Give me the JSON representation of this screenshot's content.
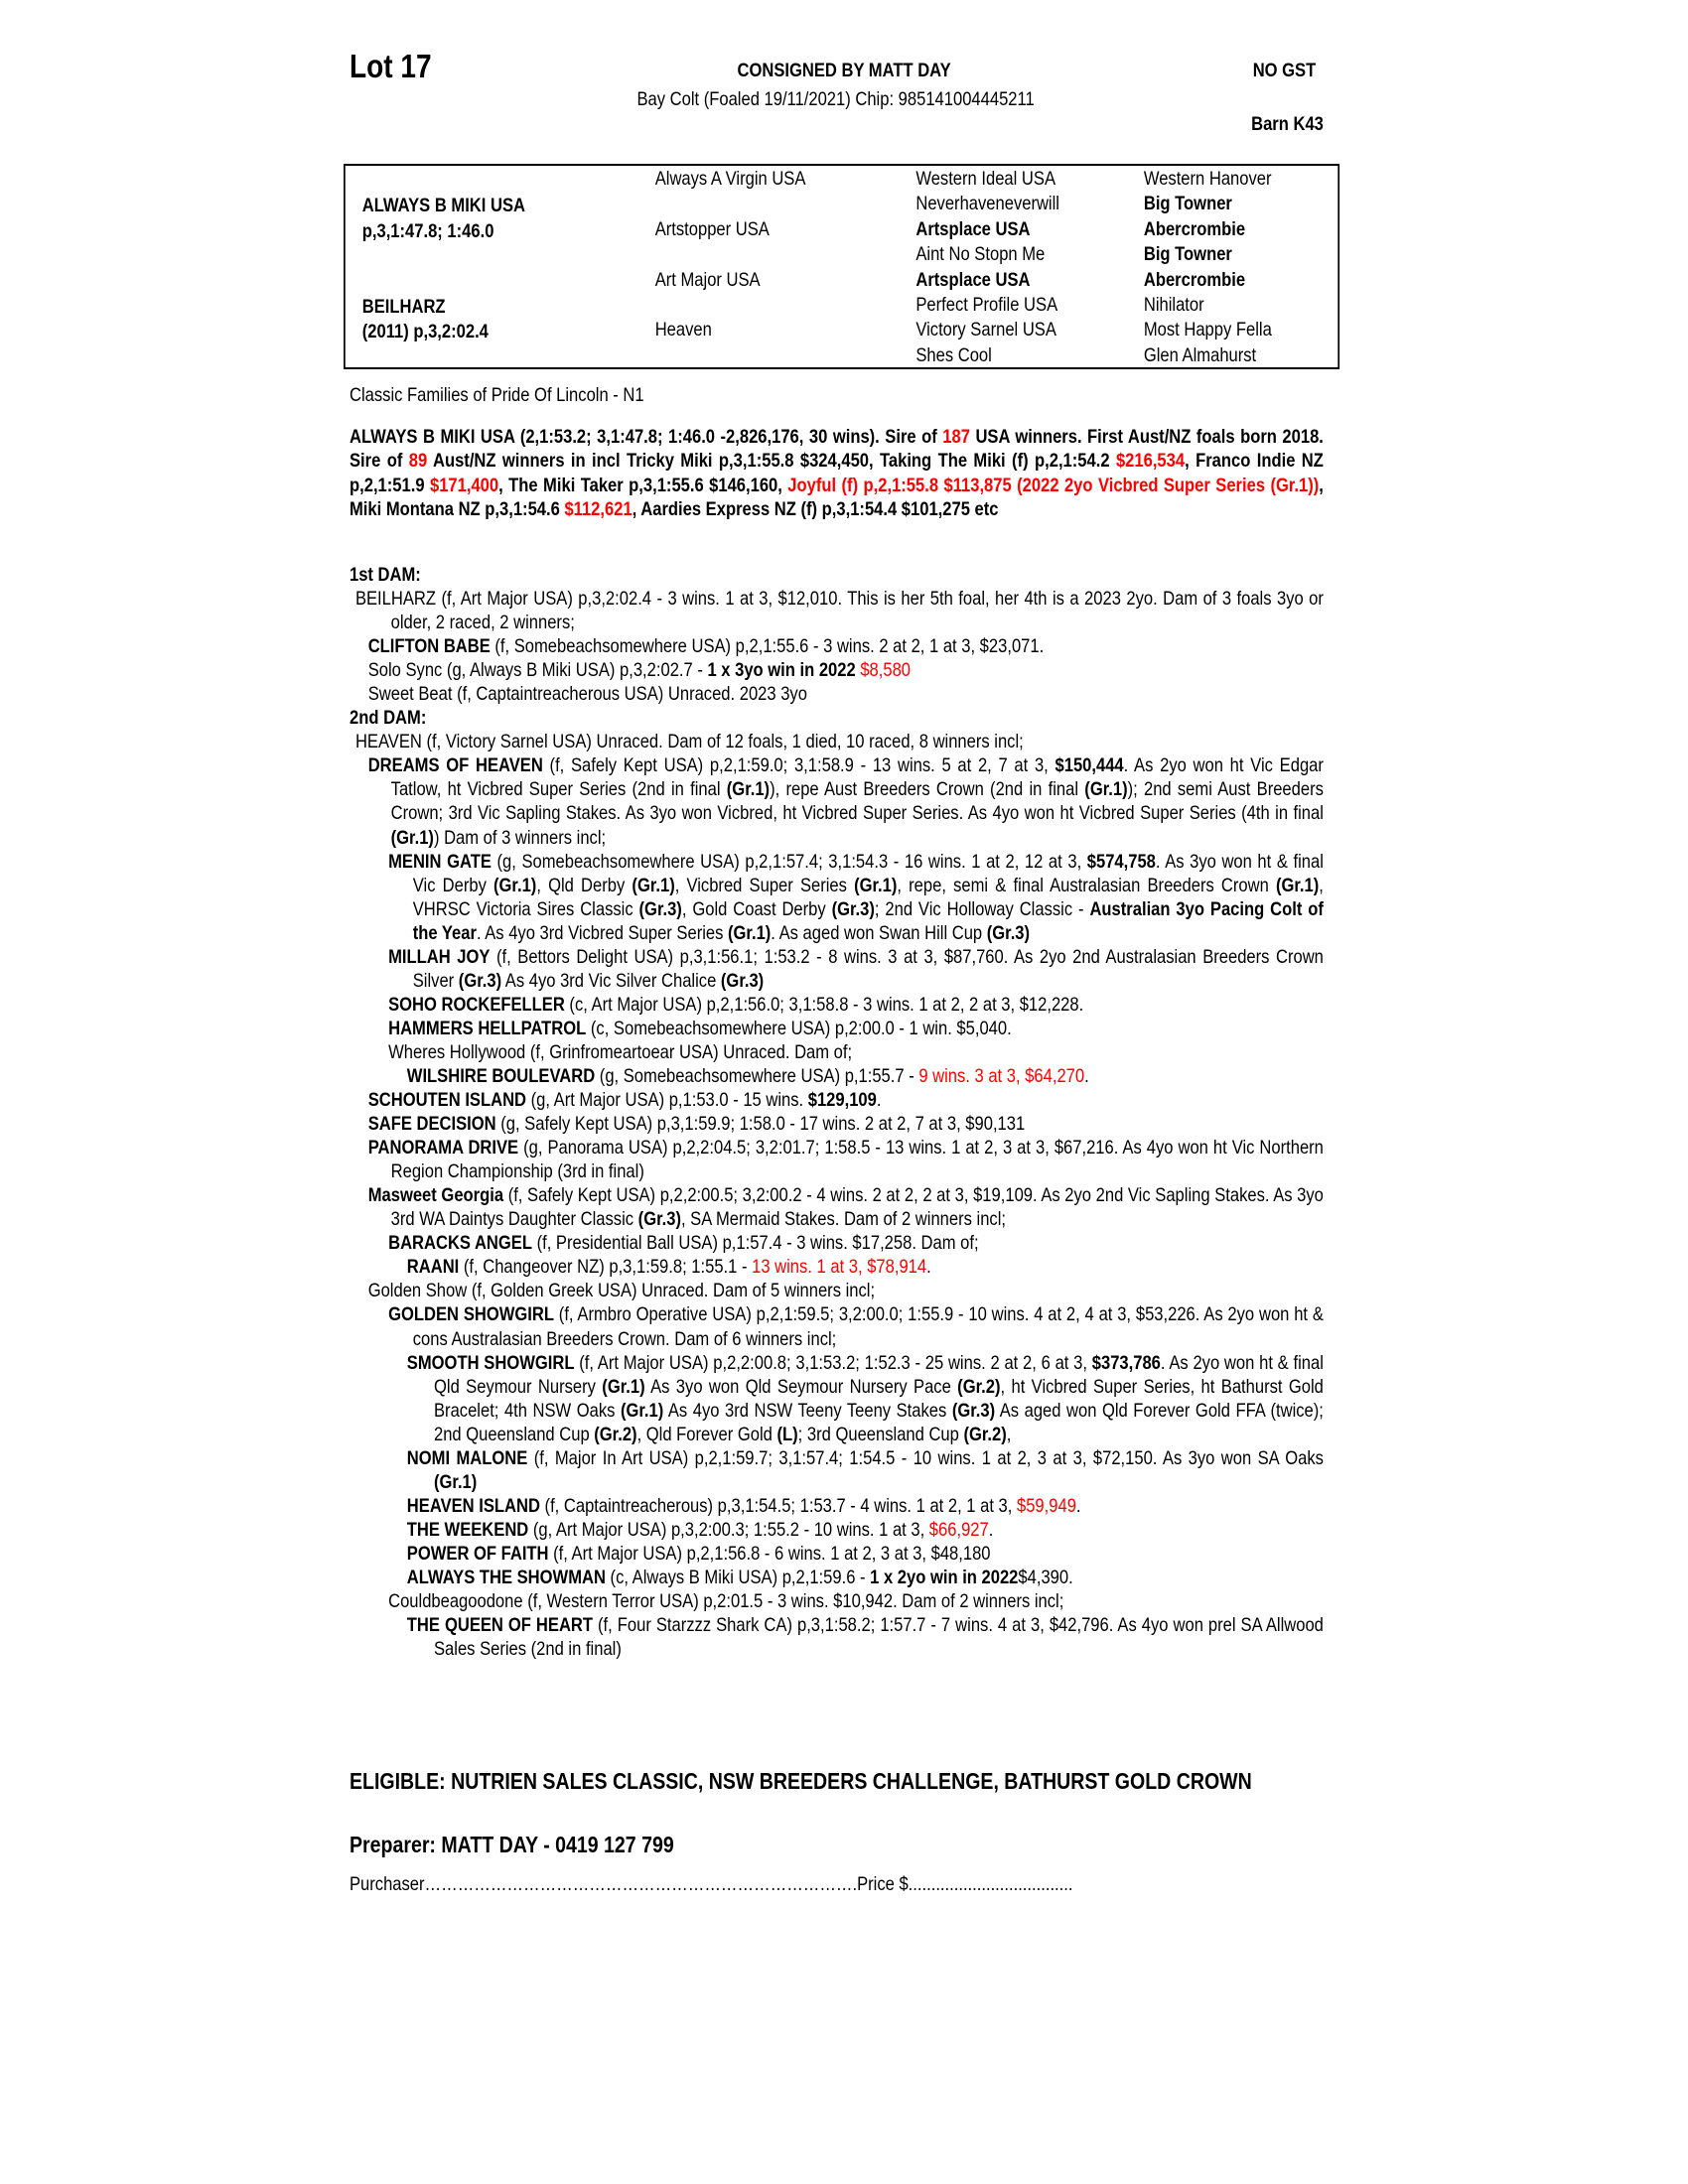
{
  "header": {
    "lot": "Lot 17",
    "consigned": "CONSIGNED BY MATT DAY",
    "description": "Bay Colt (Foaled 19/11/2021) Chip: 985141004445211",
    "gst": "NO GST",
    "barn": "Barn K43"
  },
  "pedigree": {
    "sire": {
      "name": "ALWAYS B MIKI USA",
      "record": "p,3,1:47.8; 1:46.0"
    },
    "dam": {
      "name": "BEILHARZ",
      "record": "(2011) p,3,2:02.4"
    },
    "grandparents": [
      "Always A Virgin USA",
      "Artstopper USA",
      "Art Major USA",
      "Heaven"
    ],
    "great_grandparents": [
      {
        "name": "Western Ideal USA",
        "bold": false
      },
      {
        "name": "Neverhaveneverwill",
        "bold": false
      },
      {
        "name": "Artsplace USA",
        "bold": true
      },
      {
        "name": "Aint No Stopn Me",
        "bold": false
      },
      {
        "name": "Artsplace USA",
        "bold": true
      },
      {
        "name": "Perfect Profile USA",
        "bold": false
      },
      {
        "name": "Victory Sarnel USA",
        "bold": false
      },
      {
        "name": "Shes Cool",
        "bold": false
      }
    ],
    "great_great_grandparents": [
      {
        "name": "Western Hanover",
        "bold": false
      },
      {
        "name": "Big Towner",
        "bold": true
      },
      {
        "name": "Abercrombie",
        "bold": true
      },
      {
        "name": "Big Towner",
        "bold": true
      },
      {
        "name": "Abercrombie",
        "bold": true
      },
      {
        "name": "Nihilator",
        "bold": false
      },
      {
        "name": "Most Happy Fella",
        "bold": false
      },
      {
        "name": "Glen Almahurst",
        "bold": false
      }
    ]
  },
  "family": "Classic Families of Pride Of Lincoln - N1",
  "highlight_color": "#ff0000",
  "sire_summary": [
    {
      "t": "ALWAYS B MIKI USA (2,1:53.2; 3,1:47.8; 1:46.0 -2,826,176, 30 wins). Sire of ",
      "s": ""
    },
    {
      "t": "187",
      "s": "r"
    },
    {
      "t": " USA winners. First Aust/NZ foals born 2018. Sire of ",
      "s": ""
    },
    {
      "t": "89",
      "s": "r"
    },
    {
      "t": " Aust/NZ winners in incl Tricky Miki p,3,1:55.8 $324,450, Taking The Miki (f) p,2,1:54.2 ",
      "s": ""
    },
    {
      "t": "$216,534",
      "s": "r"
    },
    {
      "t": ", Franco Indie NZ p,2,1:51.9 ",
      "s": ""
    },
    {
      "t": "$171,400",
      "s": "r"
    },
    {
      "t": ", The Miki Taker p,3,1:55.6 $146,160, ",
      "s": ""
    },
    {
      "t": "Joyful (f) p,2,1:55.8 $113,875 (2022 2yo Vicbred Super Series (Gr.1))",
      "s": "r"
    },
    {
      "t": ", Miki Montana NZ p,3,1:54.6 ",
      "s": ""
    },
    {
      "t": "$112,621",
      "s": "r"
    },
    {
      "t": ", Aardies Express NZ (f) p,3,1:54.4 $101,275 etc",
      "s": ""
    }
  ],
  "sections": [
    {
      "heading": "1st DAM:",
      "entries": [
        {
          "depth": 0,
          "segs": [
            {
              "t": "BEILHARZ (f, Art Major USA) p,3,2:02.4 - 3 wins. 1 at 3, $12,010. This is her 5th foal, her 4th is a 2023 2yo. Dam of 3 foals 3yo or older, 2 raced, 2 winners;",
              "s": ""
            }
          ]
        },
        {
          "depth": 1,
          "segs": [
            {
              "t": "CLIFTON BABE",
              "s": "b"
            },
            {
              "t": " (f, Somebeachsomewhere USA) p,2,1:55.6 - 3 wins. 2 at 2, 1 at 3, $23,071.",
              "s": ""
            }
          ]
        },
        {
          "depth": 1,
          "segs": [
            {
              "t": "Solo Sync (g, Always B Miki USA) p,3,2:02.7 - ",
              "s": ""
            },
            {
              "t": "1 x 3yo win in 2022",
              "s": "b"
            },
            {
              "t": " ",
              "s": ""
            },
            {
              "t": "$8,580",
              "s": "r"
            }
          ]
        },
        {
          "depth": 1,
          "segs": [
            {
              "t": "Sweet Beat (f, Captaintreacherous USA) Unraced. 2023 3yo",
              "s": ""
            }
          ]
        }
      ]
    },
    {
      "heading": "2nd DAM:",
      "entries": [
        {
          "depth": 0,
          "segs": [
            {
              "t": "HEAVEN (f, Victory Sarnel USA) Unraced. Dam of 12 foals, 1 died, 10 raced, 8 winners incl;",
              "s": ""
            }
          ]
        },
        {
          "depth": 1,
          "segs": [
            {
              "t": "DREAMS OF HEAVEN",
              "s": "b"
            },
            {
              "t": " (f, Safely Kept USA) p,2,1:59.0; 3,1:58.9 - 13 wins. 5 at 2, 7 at 3, ",
              "s": ""
            },
            {
              "t": "$150,444",
              "s": "b"
            },
            {
              "t": ". As 2yo won ht Vic Edgar Tatlow, ht Vicbred Super Series (2nd in final ",
              "s": ""
            },
            {
              "t": "(Gr.1)",
              "s": "b"
            },
            {
              "t": "), repe Aust Breeders Crown (2nd in final ",
              "s": ""
            },
            {
              "t": "(Gr.1)",
              "s": "b"
            },
            {
              "t": "); 2nd semi Aust Breeders Crown; 3rd Vic Sapling Stakes. As 3yo won Vicbred, ht Vicbred Super Series. As 4yo won ht Vicbred Super Series (4th in final ",
              "s": ""
            },
            {
              "t": "(Gr.1)",
              "s": "b"
            },
            {
              "t": ") Dam of 3 winners incl;",
              "s": ""
            }
          ]
        },
        {
          "depth": 2,
          "segs": [
            {
              "t": "MENIN GATE",
              "s": "b"
            },
            {
              "t": " (g, Somebeachsomewhere USA) p,2,1:57.4; 3,1:54.3 - 16 wins. 1 at 2, 12 at 3, ",
              "s": ""
            },
            {
              "t": "$574,758",
              "s": "b"
            },
            {
              "t": ". As 3yo won ht & final Vic Derby ",
              "s": ""
            },
            {
              "t": "(Gr.1)",
              "s": "b"
            },
            {
              "t": ", Qld Derby ",
              "s": ""
            },
            {
              "t": "(Gr.1)",
              "s": "b"
            },
            {
              "t": ", Vicbred Super Series ",
              "s": ""
            },
            {
              "t": "(Gr.1)",
              "s": "b"
            },
            {
              "t": ", repe, semi & final Australasian Breeders Crown ",
              "s": ""
            },
            {
              "t": "(Gr.1)",
              "s": "b"
            },
            {
              "t": ", VHRSC Victoria Sires Classic ",
              "s": ""
            },
            {
              "t": "(Gr.3)",
              "s": "b"
            },
            {
              "t": ", Gold Coast Derby ",
              "s": ""
            },
            {
              "t": "(Gr.3)",
              "s": "b"
            },
            {
              "t": "; 2nd Vic Holloway Classic - ",
              "s": ""
            },
            {
              "t": "Australian 3yo Pacing Colt of the Year",
              "s": "b"
            },
            {
              "t": ". As 4yo 3rd Vicbred Super Series ",
              "s": ""
            },
            {
              "t": "(Gr.1)",
              "s": "b"
            },
            {
              "t": ". As aged won Swan Hill Cup ",
              "s": ""
            },
            {
              "t": "(Gr.3)",
              "s": "b"
            }
          ]
        },
        {
          "depth": 2,
          "segs": [
            {
              "t": "MILLAH JOY",
              "s": "b"
            },
            {
              "t": " (f, Bettors Delight USA) p,3,1:56.1; 1:53.2 - 8 wins. 3 at 3, $87,760. As 2yo 2nd Australasian Breeders Crown Silver ",
              "s": ""
            },
            {
              "t": "(Gr.3)",
              "s": "b"
            },
            {
              "t": " As 4yo 3rd Vic Silver Chalice ",
              "s": ""
            },
            {
              "t": "(Gr.3)",
              "s": "b"
            }
          ]
        },
        {
          "depth": 2,
          "segs": [
            {
              "t": "SOHO ROCKEFELLER",
              "s": "b"
            },
            {
              "t": " (c, Art Major USA) p,2,1:56.0; 3,1:58.8 - 3 wins. 1 at 2, 2 at 3, $12,228.",
              "s": ""
            }
          ]
        },
        {
          "depth": 2,
          "segs": [
            {
              "t": "HAMMERS HELLPATROL",
              "s": "b"
            },
            {
              "t": " (c, Somebeachsomewhere USA) p,2:00.0 - 1 win. $5,040.",
              "s": ""
            }
          ]
        },
        {
          "depth": 2,
          "segs": [
            {
              "t": "Wheres Hollywood (f, Grinfromeartoear USA) Unraced. Dam of;",
              "s": ""
            }
          ]
        },
        {
          "depth": 3,
          "segs": [
            {
              "t": "WILSHIRE BOULEVARD",
              "s": "b"
            },
            {
              "t": " (g, Somebeachsomewhere USA) p,1:55.7 - ",
              "s": ""
            },
            {
              "t": "9 wins. 3 at 3, $64,270",
              "s": "r"
            },
            {
              "t": ".",
              "s": ""
            }
          ]
        },
        {
          "depth": 1,
          "segs": [
            {
              "t": "SCHOUTEN ISLAND",
              "s": "b"
            },
            {
              "t": " (g, Art Major USA) p,1:53.0 - 15 wins. ",
              "s": ""
            },
            {
              "t": "$129,109",
              "s": "b"
            },
            {
              "t": ".",
              "s": ""
            }
          ]
        },
        {
          "depth": 1,
          "segs": [
            {
              "t": "SAFE DECISION",
              "s": "b"
            },
            {
              "t": " (g, Safely Kept USA) p,3,1:59.9; 1:58.0 - 17 wins. 2 at 2, 7 at 3, $90,131",
              "s": ""
            }
          ]
        },
        {
          "depth": 1,
          "segs": [
            {
              "t": "PANORAMA DRIVE",
              "s": "b"
            },
            {
              "t": " (g, Panorama USA) p,2,2:04.5; 3,2:01.7; 1:58.5 - 13 wins. 1 at 2, 3 at 3, $67,216. As 4yo won ht Vic Northern Region Championship (3rd in final)",
              "s": ""
            }
          ]
        },
        {
          "depth": 1,
          "segs": [
            {
              "t": "Masweet Georgia",
              "s": "b"
            },
            {
              "t": " (f, Safely Kept USA) p,2,2:00.5; 3,2:00.2 - 4 wins. 2 at 2, 2 at 3, $19,109. As 2yo 2nd Vic Sapling Stakes. As 3yo 3rd WA Daintys Daughter Classic ",
              "s": ""
            },
            {
              "t": "(Gr.3)",
              "s": "b"
            },
            {
              "t": ", SA Mermaid Stakes. Dam of 2 winners incl;",
              "s": ""
            }
          ]
        },
        {
          "depth": 2,
          "segs": [
            {
              "t": "BARACKS ANGEL",
              "s": "b"
            },
            {
              "t": " (f, Presidential Ball USA) p,1:57.4 - 3 wins. $17,258. Dam of;",
              "s": ""
            }
          ]
        },
        {
          "depth": 3,
          "segs": [
            {
              "t": "RAANI",
              "s": "b"
            },
            {
              "t": " (f, Changeover NZ) p,3,1:59.8; 1:55.1 - ",
              "s": ""
            },
            {
              "t": "13 wins. 1 at 3, $78,914",
              "s": "r"
            },
            {
              "t": ".",
              "s": ""
            }
          ]
        },
        {
          "depth": 1,
          "segs": [
            {
              "t": "Golden Show (f, Golden Greek USA) Unraced. Dam of 5 winners incl;",
              "s": ""
            }
          ]
        },
        {
          "depth": 2,
          "segs": [
            {
              "t": "GOLDEN SHOWGIRL",
              "s": "b"
            },
            {
              "t": " (f, Armbro Operative USA) p,2,1:59.5; 3,2:00.0; 1:55.9 - 10 wins. 4 at 2, 4 at 3, $53,226. As 2yo won ht & cons Australasian Breeders Crown. Dam of 6 winners incl;",
              "s": ""
            }
          ]
        },
        {
          "depth": 3,
          "segs": [
            {
              "t": "SMOOTH SHOWGIRL",
              "s": "b"
            },
            {
              "t": " (f, Art Major USA) p,2,2:00.8; 3,1:53.2; 1:52.3 - 25 wins. 2 at 2, 6 at 3, ",
              "s": ""
            },
            {
              "t": "$373,786",
              "s": "b"
            },
            {
              "t": ". As 2yo won ht & final Qld Seymour Nursery ",
              "s": ""
            },
            {
              "t": "(Gr.1)",
              "s": "b"
            },
            {
              "t": " As 3yo won Qld Seymour Nursery Pace ",
              "s": ""
            },
            {
              "t": "(Gr.2)",
              "s": "b"
            },
            {
              "t": ", ht Vicbred Super Series, ht Bathurst Gold Bracelet; 4th NSW Oaks ",
              "s": ""
            },
            {
              "t": "(Gr.1)",
              "s": "b"
            },
            {
              "t": " As 4yo 3rd NSW Teeny Teeny Stakes ",
              "s": ""
            },
            {
              "t": "(Gr.3)",
              "s": "b"
            },
            {
              "t": " As aged won Qld Forever Gold FFA (twice); 2nd Queensland Cup ",
              "s": ""
            },
            {
              "t": "(Gr.2)",
              "s": "b"
            },
            {
              "t": ", Qld Forever Gold ",
              "s": ""
            },
            {
              "t": "(L)",
              "s": "b"
            },
            {
              "t": "; 3rd Queensland Cup ",
              "s": ""
            },
            {
              "t": "(Gr.2)",
              "s": "b"
            },
            {
              "t": ",",
              "s": ""
            }
          ]
        },
        {
          "depth": 3,
          "segs": [
            {
              "t": "NOMI MALONE",
              "s": "b"
            },
            {
              "t": " (f, Major In Art USA) p,2,1:59.7; 3,1:57.4; 1:54.5 - 10 wins. 1 at 2, 3 at 3, $72,150. As 3yo won SA Oaks ",
              "s": ""
            },
            {
              "t": "(Gr.1)",
              "s": "b"
            }
          ]
        },
        {
          "depth": 3,
          "segs": [
            {
              "t": "HEAVEN ISLAND",
              "s": "b"
            },
            {
              "t": " (f, Captaintreacherous) p,3,1:54.5; 1:53.7 - 4 wins. 1 at 2, 1 at 3, ",
              "s": ""
            },
            {
              "t": "$59,949",
              "s": "r"
            },
            {
              "t": ".",
              "s": ""
            }
          ]
        },
        {
          "depth": 3,
          "segs": [
            {
              "t": "THE WEEKEND",
              "s": "b"
            },
            {
              "t": " (g, Art Major USA) p,3,2:00.3; 1:55.2 - 10 wins. 1 at 3, ",
              "s": ""
            },
            {
              "t": "$66,927",
              "s": "r"
            },
            {
              "t": ".",
              "s": ""
            }
          ]
        },
        {
          "depth": 3,
          "segs": [
            {
              "t": "POWER OF FAITH",
              "s": "b"
            },
            {
              "t": " (f, Art Major USA) p,2,1:56.8 - 6 wins. 1 at 2, 3 at 3, $48,180",
              "s": ""
            }
          ]
        },
        {
          "depth": 3,
          "segs": [
            {
              "t": "ALWAYS THE SHOWMAN",
              "s": "b"
            },
            {
              "t": " (c, Always B Miki USA) p,2,1:59.6 - ",
              "s": ""
            },
            {
              "t": "1 x 2yo win in 2022",
              "s": "b"
            },
            {
              "t": "$4,390.",
              "s": ""
            }
          ]
        },
        {
          "depth": 2,
          "segs": [
            {
              "t": "Couldbeagoodone (f, Western Terror USA) p,2:01.5 - 3 wins. $10,942. Dam of 2 winners incl;",
              "s": ""
            }
          ]
        },
        {
          "depth": 3,
          "segs": [
            {
              "t": "THE QUEEN OF HEART",
              "s": "b"
            },
            {
              "t": " (f, Four Starzzz Shark CA) p,3,1:58.2; 1:57.7 - 7 wins. 4 at 3, $42,796. As 4yo won prel SA Allwood Sales Series (2nd in final)",
              "s": ""
            }
          ]
        }
      ]
    }
  ],
  "eligible": "ELIGIBLE: NUTRIEN SALES CLASSIC, NSW BREEDERS CHALLENGE, BATHURST GOLD CROWN",
  "preparer": "Preparer: MATT DAY - 0419 127 799",
  "purchaser_line": "Purchaser…………………………………………………………………….Price $...................................."
}
